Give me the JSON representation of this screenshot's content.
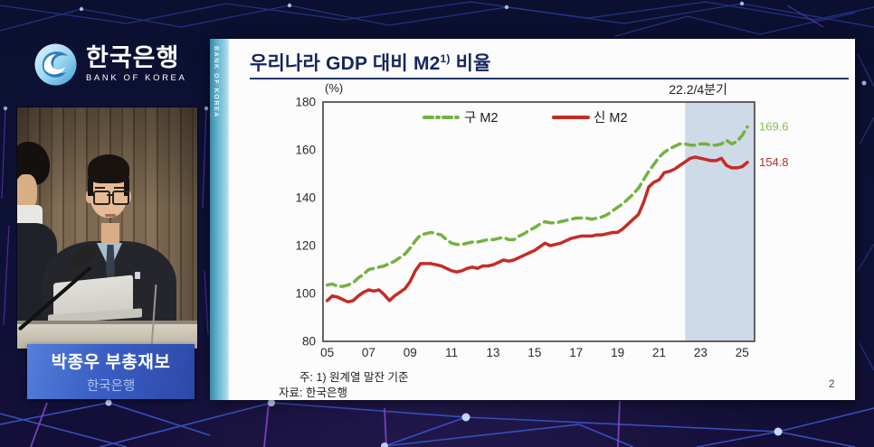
{
  "brand": {
    "korean_name": "한국은행",
    "english_name": "BANK OF KOREA"
  },
  "speaker": {
    "name_title": "박종우 부총재보",
    "affiliation": "한국은행"
  },
  "slide": {
    "strip_text": "BANK OF KOREA",
    "title_main": "우리나라 GDP 대비 M2",
    "title_sup": "1)",
    "title_tail": " 비율",
    "note": "주: 1) 원계열 말잔 기준",
    "source": "자료: 한국은행",
    "page_number": "2"
  },
  "chart_data": {
    "type": "line",
    "title": "우리나라 GDP 대비 M2(1) 비율",
    "unit_label": "(%)",
    "ylabel": "",
    "xlabel": "",
    "ylim": [
      80,
      180
    ],
    "yticks": [
      80,
      100,
      120,
      140,
      160,
      180
    ],
    "xlim": [
      2004.8,
      2025.6
    ],
    "xticks": [
      {
        "label": "05",
        "year": 2005
      },
      {
        "label": "07",
        "year": 2007
      },
      {
        "label": "09",
        "year": 2009
      },
      {
        "label": "11",
        "year": 2011
      },
      {
        "label": "13",
        "year": 2013
      },
      {
        "label": "15",
        "year": 2015
      },
      {
        "label": "17",
        "year": 2017
      },
      {
        "label": "19",
        "year": 2019
      },
      {
        "label": "21",
        "year": 2021
      },
      {
        "label": "23",
        "year": 2023
      },
      {
        "label": "25",
        "year": 2025
      }
    ],
    "grid": false,
    "legend_position": "top-inside",
    "shaded_region": {
      "start": 2022.25,
      "label": "22.2/4분기",
      "color": "#cfdae8"
    },
    "plot_border_color": "#3f3f3f",
    "series": [
      {
        "name": "구 M2",
        "color": "#72b23f",
        "style": "dashed",
        "end_label": "169.6",
        "end_label_color": "#85bd4e",
        "x_start": 2005.0,
        "x_step": 0.25,
        "values": [
          103.5,
          104,
          103,
          103,
          103.5,
          104.5,
          106.5,
          108,
          110,
          110.5,
          111,
          111.5,
          112.5,
          113.5,
          115,
          116.5,
          119,
          122,
          124.5,
          125,
          125.5,
          125,
          124.5,
          122.5,
          121,
          120.5,
          120.5,
          121,
          121.5,
          121.5,
          122,
          122.5,
          122.5,
          123,
          123.5,
          122.5,
          122.5,
          124,
          125,
          126.5,
          127.5,
          129,
          130,
          129.5,
          129.5,
          130,
          130.5,
          131,
          131.5,
          131.5,
          131.5,
          131,
          131.5,
          132,
          133,
          134.5,
          136,
          137.5,
          139.5,
          141.5,
          144,
          147.5,
          151,
          154,
          157,
          159,
          160.5,
          161.5,
          162.5,
          162.5,
          162,
          162,
          162.5,
          162.5,
          162,
          162,
          162.5,
          164,
          162.5,
          163.5,
          166,
          169.6
        ]
      },
      {
        "name": "신 M2",
        "color": "#c62b24",
        "style": "solid",
        "end_label": "154.8",
        "end_label_color": "#ae352b",
        "x_start": 2005.0,
        "x_step": 0.25,
        "values": [
          97,
          99,
          98.5,
          97.5,
          96.5,
          97,
          99,
          100.5,
          101.5,
          101,
          101.5,
          99.5,
          97,
          99,
          100.5,
          102,
          105,
          109.5,
          112.5,
          112.5,
          112.5,
          112,
          111.5,
          110.5,
          109.5,
          109,
          109.5,
          110.5,
          111,
          110.5,
          111.5,
          111.5,
          112,
          113,
          114,
          113.5,
          114,
          115,
          116,
          117,
          118,
          119.5,
          121,
          120,
          120.5,
          121,
          122,
          123,
          123.5,
          124,
          124,
          124,
          124.5,
          124.5,
          125,
          125.5,
          125.5,
          127,
          129,
          131,
          133,
          138,
          144.5,
          146.5,
          147.5,
          150.5,
          151,
          152,
          153.5,
          155,
          156.5,
          157,
          156.5,
          156,
          155.5,
          155.5,
          156.5,
          153.5,
          152.5,
          152.5,
          153,
          154.8
        ]
      }
    ]
  }
}
